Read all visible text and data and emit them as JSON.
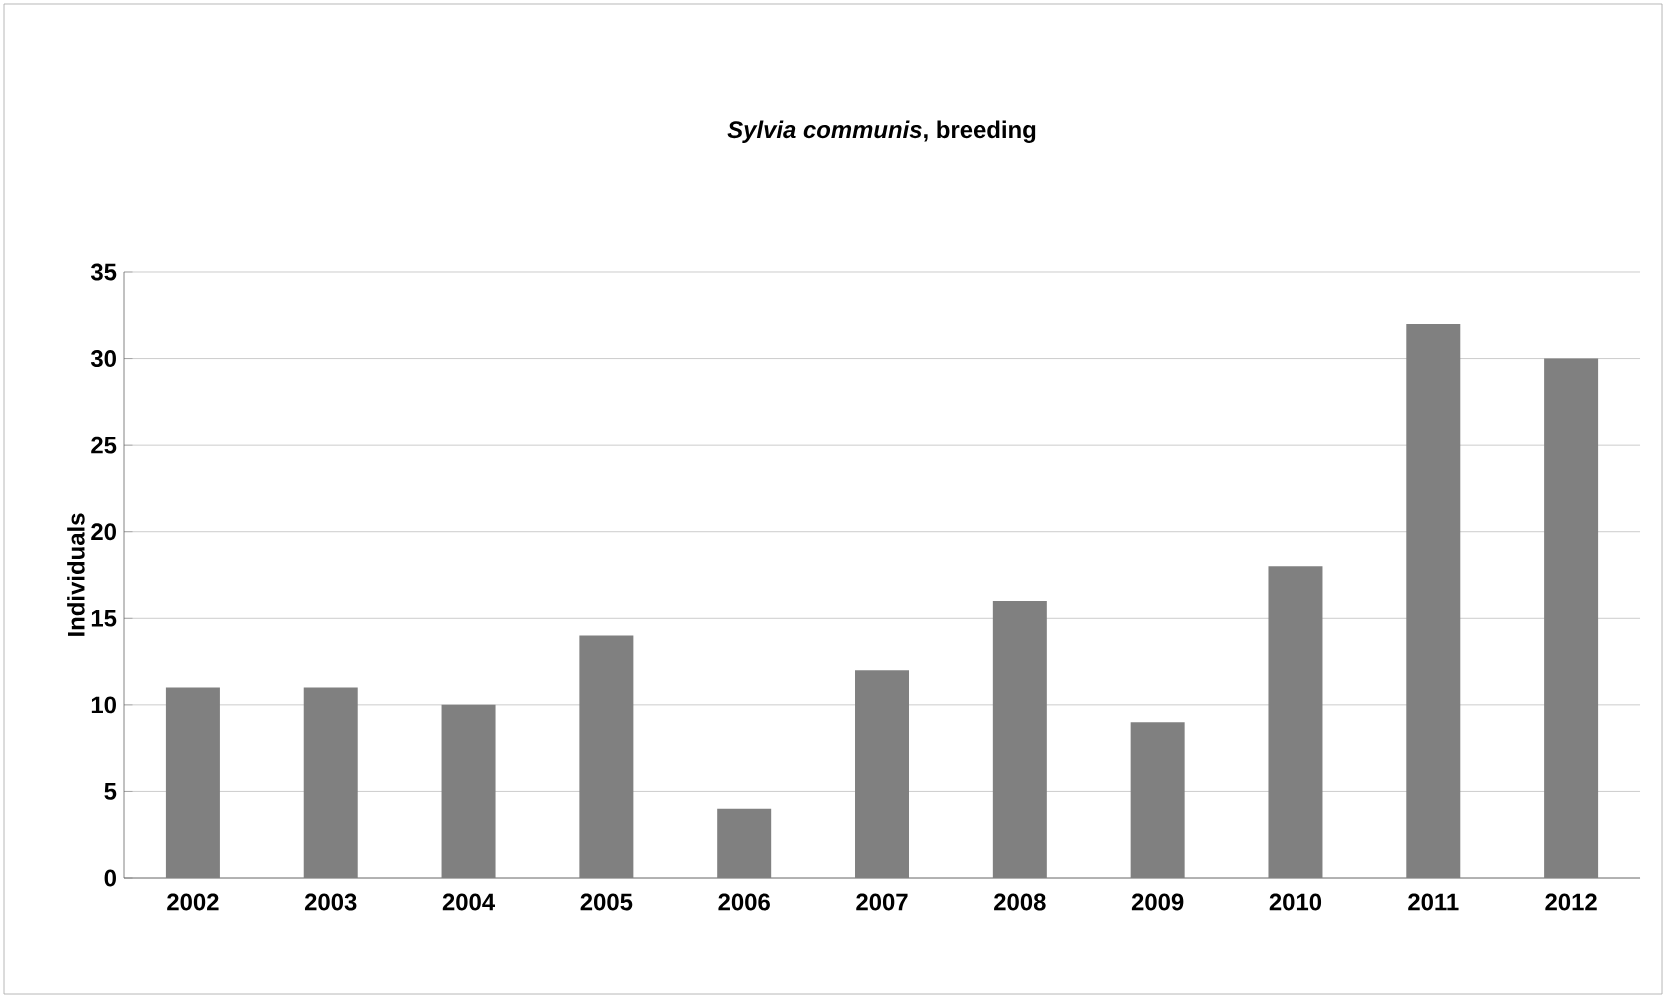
{
  "chart_data": {
    "type": "bar",
    "title": "*Sylvia communis*, breeding",
    "ylabel": "Individuals",
    "categories": [
      "2002",
      "2003",
      "2004",
      "2005",
      "2006",
      "2007",
      "2008",
      "2009",
      "2010",
      "2011",
      "2012"
    ],
    "values": [
      11,
      11,
      10,
      14,
      4,
      12,
      16,
      9,
      18,
      32,
      30
    ],
    "color": "#808080",
    "ylim": [
      0,
      35
    ],
    "yticks": [
      0,
      5,
      10,
      15,
      20,
      25,
      30,
      35
    ],
    "grid": "y"
  }
}
